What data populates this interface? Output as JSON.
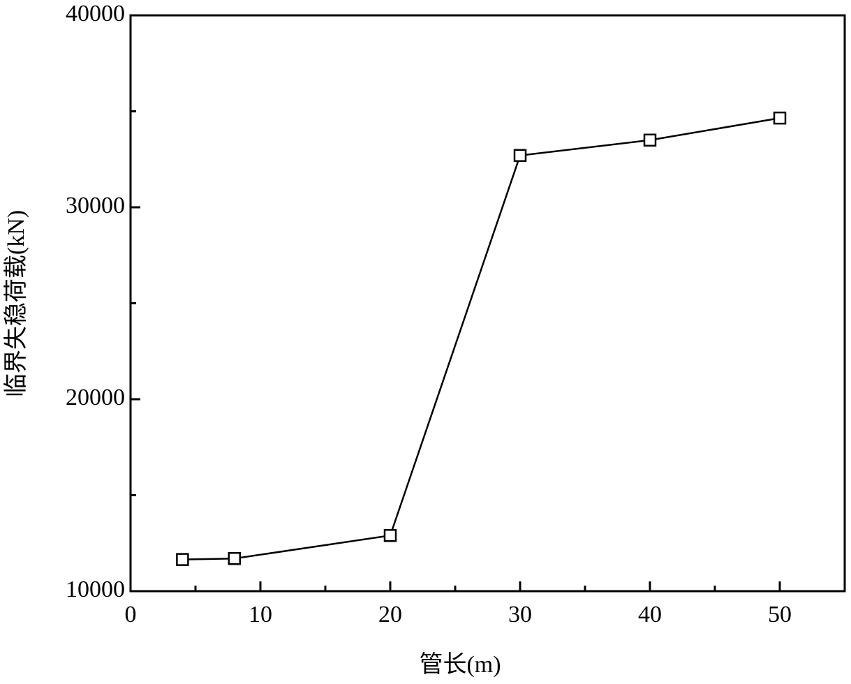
{
  "chart_data": {
    "type": "line",
    "x_label": "管长(m)",
    "y_label": "临界失稳荷载(kN)",
    "x": [
      4,
      8,
      20,
      30,
      40,
      50
    ],
    "series": [
      {
        "color": "#000000",
        "values": [
          11650,
          11700,
          12900,
          32700,
          33500,
          34650
        ]
      }
    ],
    "marker": "open-square",
    "xlim": [
      0,
      55
    ],
    "xticks": [
      0,
      10,
      20,
      30,
      40,
      50
    ],
    "xminorticks": [
      5,
      15,
      25,
      35,
      45
    ],
    "ylim": [
      10000,
      40000
    ],
    "yticks": [
      10000,
      20000,
      30000,
      40000
    ],
    "yminorticks": [
      15000,
      25000,
      35000
    ],
    "grid": false
  }
}
